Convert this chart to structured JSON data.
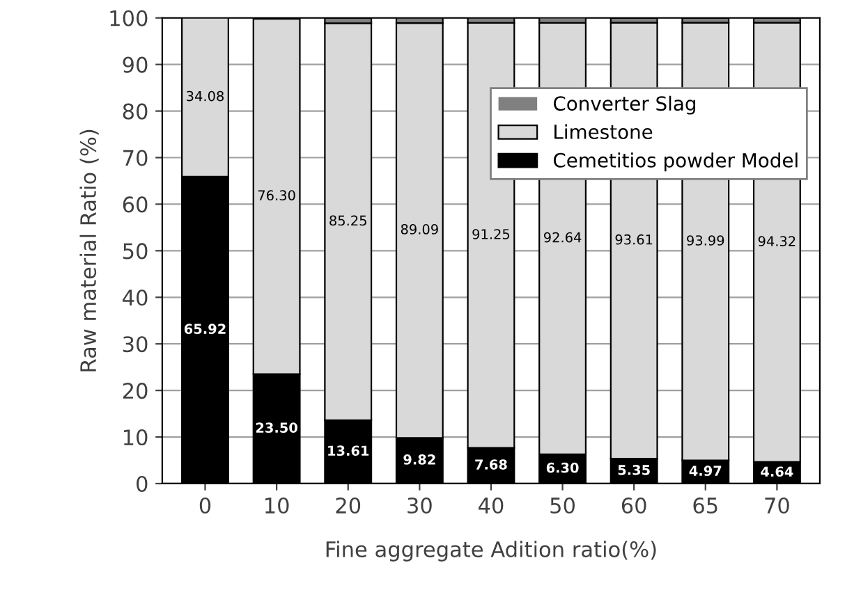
{
  "chart_data": {
    "type": "bar",
    "stacked": true,
    "xlabel": "Fine aggregate Adition ratio(%)",
    "ylabel": "Raw material Ratio (%)",
    "categories": [
      "0",
      "10",
      "20",
      "30",
      "40",
      "50",
      "60",
      "65",
      "70"
    ],
    "series": [
      {
        "name": "Cemetitios powder Model",
        "color": "#000000",
        "values": [
          65.92,
          23.5,
          13.61,
          9.82,
          7.68,
          6.3,
          5.35,
          4.97,
          4.64
        ],
        "value_labels": [
          "65.92",
          "23.50",
          "13.61",
          "9.82",
          "7.68",
          "6.30",
          "5.35",
          "4.97",
          "4.64"
        ]
      },
      {
        "name": "Limestone",
        "color": "#d9d9d9",
        "values": [
          34.08,
          76.3,
          85.25,
          89.09,
          91.25,
          92.64,
          93.61,
          93.99,
          94.32
        ],
        "value_labels": [
          "34.08",
          "76.30",
          "85.25",
          "89.09",
          "91.25",
          "92.64",
          "93.61",
          "93.99",
          "94.32"
        ]
      },
      {
        "name": "Converter Slag",
        "color": "#808080",
        "values": [
          0,
          null,
          1.1,
          1.1,
          1.1,
          1.1,
          1.0,
          1.0,
          1.0
        ]
      }
    ],
    "ylim": [
      0,
      100
    ],
    "yticks": [
      0,
      10,
      20,
      30,
      40,
      50,
      60,
      70,
      80,
      90,
      100
    ],
    "grid": "y",
    "legend": "top right"
  }
}
